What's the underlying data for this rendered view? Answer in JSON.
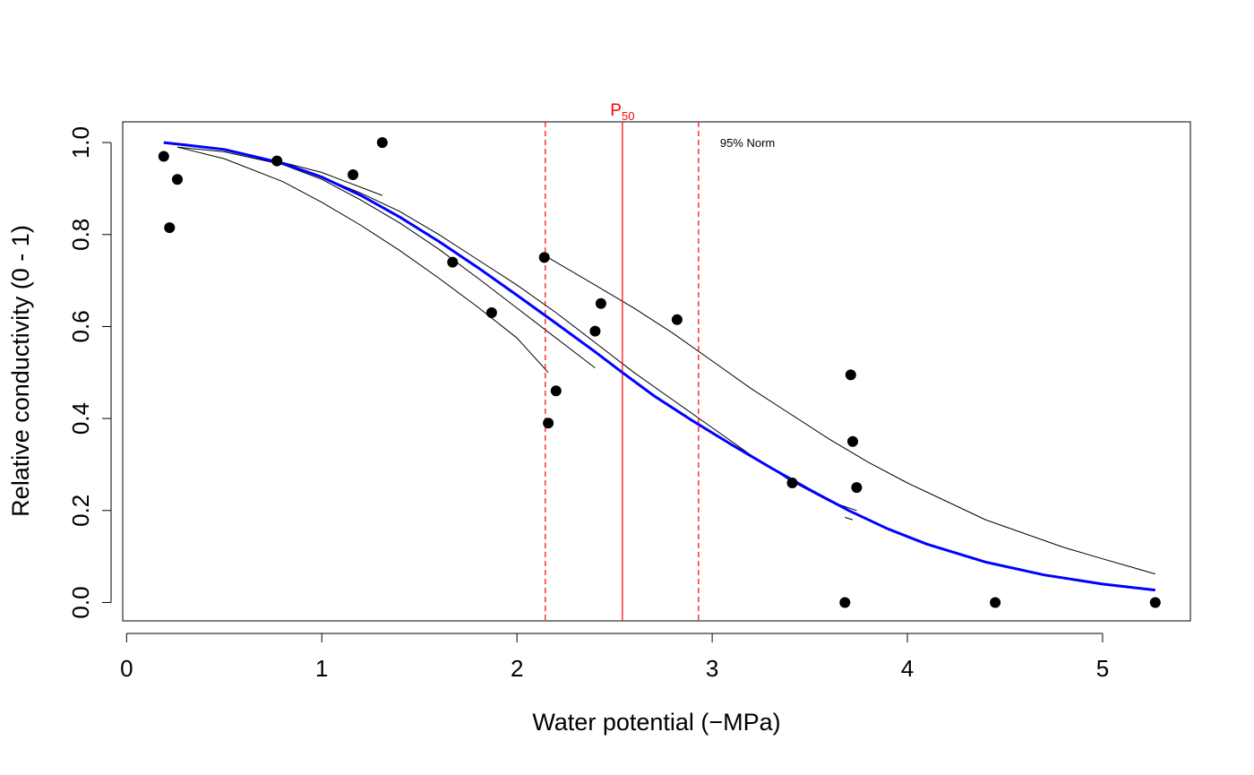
{
  "chart_data": {
    "type": "scatter",
    "title": "",
    "xlabel": "Water potential  (−MPa)",
    "ylabel": "Relative conductivity (0 - 1)",
    "xlim": [
      -0.02,
      5.45
    ],
    "ylim": [
      -0.04,
      1.045
    ],
    "x_ticks": [
      0,
      1,
      2,
      3,
      4,
      5
    ],
    "y_ticks": [
      0.0,
      0.2,
      0.4,
      0.6,
      0.8,
      1.0
    ],
    "x_tick_labels": [
      "0",
      "1",
      "2",
      "3",
      "4",
      "5"
    ],
    "y_tick_labels": [
      "0.0",
      "0.2",
      "0.4",
      "0.6",
      "0.8",
      "1.0"
    ],
    "grid": false,
    "points": [
      {
        "x": 0.19,
        "y": 0.97
      },
      {
        "x": 0.22,
        "y": 0.815
      },
      {
        "x": 0.26,
        "y": 0.92
      },
      {
        "x": 0.77,
        "y": 0.96
      },
      {
        "x": 1.16,
        "y": 0.93
      },
      {
        "x": 1.31,
        "y": 1.0
      },
      {
        "x": 1.67,
        "y": 0.74
      },
      {
        "x": 1.87,
        "y": 0.63
      },
      {
        "x": 2.14,
        "y": 0.75
      },
      {
        "x": 2.16,
        "y": 0.39
      },
      {
        "x": 2.2,
        "y": 0.46
      },
      {
        "x": 2.4,
        "y": 0.59
      },
      {
        "x": 2.43,
        "y": 0.65
      },
      {
        "x": 2.82,
        "y": 0.615
      },
      {
        "x": 3.41,
        "y": 0.26
      },
      {
        "x": 3.68,
        "y": 0.0
      },
      {
        "x": 3.71,
        "y": 0.495
      },
      {
        "x": 3.72,
        "y": 0.35
      },
      {
        "x": 3.74,
        "y": 0.25
      },
      {
        "x": 4.45,
        "y": 0.0
      },
      {
        "x": 5.27,
        "y": 0.0
      }
    ],
    "fitted_curve": {
      "color": "#0000ff",
      "x": [
        0.19,
        0.3,
        0.5,
        0.8,
        1.0,
        1.2,
        1.4,
        1.6,
        1.8,
        2.0,
        2.2,
        2.4,
        2.54,
        2.7,
        2.9,
        3.1,
        3.3,
        3.5,
        3.7,
        3.9,
        4.1,
        4.4,
        4.7,
        5.0,
        5.27
      ],
      "y": [
        1.0,
        0.995,
        0.985,
        0.955,
        0.925,
        0.885,
        0.838,
        0.785,
        0.728,
        0.668,
        0.607,
        0.545,
        0.5,
        0.45,
        0.395,
        0.343,
        0.293,
        0.245,
        0.2,
        0.16,
        0.127,
        0.088,
        0.06,
        0.04,
        0.027
      ]
    },
    "bootstrap_curves": [
      {
        "x": [
          0.26,
          0.5,
          0.8,
          1.0,
          1.2,
          1.4,
          1.6,
          1.8,
          2.0,
          2.16
        ],
        "y": [
          0.99,
          0.965,
          0.915,
          0.87,
          0.82,
          0.765,
          0.705,
          0.642,
          0.575,
          0.5
        ]
      },
      {
        "x": [
          0.26,
          0.5,
          0.8,
          1.0,
          1.2,
          1.4,
          1.6,
          1.8,
          2.0,
          2.2,
          2.4
        ],
        "y": [
          0.99,
          0.98,
          0.952,
          0.92,
          0.875,
          0.825,
          0.768,
          0.705,
          0.64,
          0.575,
          0.51
        ]
      },
      {
        "x": [
          0.77,
          1.0,
          1.31
        ],
        "y": [
          0.96,
          0.935,
          0.885
        ]
      },
      {
        "x": [
          1.0,
          1.2,
          1.4,
          1.6,
          1.8,
          2.0,
          2.2,
          2.4,
          2.6,
          2.8,
          3.0,
          3.2,
          3.4,
          3.6,
          3.74
        ],
        "y": [
          0.925,
          0.89,
          0.85,
          0.8,
          0.745,
          0.69,
          0.63,
          0.565,
          0.5,
          0.44,
          0.38,
          0.32,
          0.265,
          0.22,
          0.2
        ]
      },
      {
        "x": [
          2.14,
          2.4,
          2.6,
          2.8,
          3.0,
          3.2,
          3.4,
          3.6,
          3.8,
          4.0,
          4.2,
          4.4,
          4.6,
          4.8,
          5.0,
          5.27
        ],
        "y": [
          0.755,
          0.69,
          0.64,
          0.585,
          0.525,
          0.465,
          0.41,
          0.355,
          0.305,
          0.26,
          0.22,
          0.18,
          0.15,
          0.12,
          0.095,
          0.062
        ]
      },
      {
        "x": [
          3.68,
          3.72
        ],
        "y": [
          0.185,
          0.18
        ]
      }
    ],
    "p50": {
      "x": 2.54,
      "label_main": "P",
      "label_sub": "50",
      "color": "#ff0000"
    },
    "ci_lines": {
      "x": [
        2.145,
        2.93
      ],
      "color": "#ff0000"
    },
    "ci_note": "95% Norm"
  }
}
